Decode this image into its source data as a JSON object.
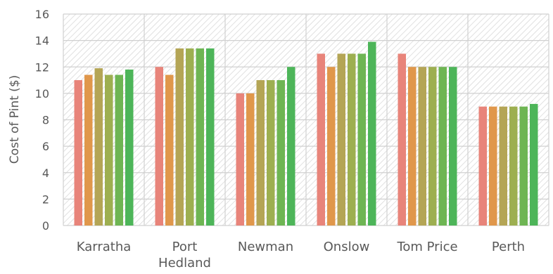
{
  "chart_data": {
    "type": "bar",
    "ylabel": "Cost of Pint ($)",
    "ylim": [
      0,
      16
    ],
    "yticks": [
      "0",
      "2",
      "4",
      "6",
      "8",
      "10",
      "12",
      "14",
      "16"
    ],
    "categories": [
      {
        "lines": [
          "Karratha"
        ]
      },
      {
        "lines": [
          "Port",
          "Hedland"
        ]
      },
      {
        "lines": [
          "Newman"
        ]
      },
      {
        "lines": [
          "Onslow"
        ]
      },
      {
        "lines": [
          "Tom Price"
        ]
      },
      {
        "lines": [
          "Perth"
        ]
      }
    ],
    "grid": true,
    "legend": "none",
    "colors": [
      "#E8847A",
      "#E0974B",
      "#B4A555",
      "#9DAF50",
      "#6EB553",
      "#4DB559"
    ],
    "series": [
      {
        "values": [
          11.0,
          12.0,
          10.0,
          13.0,
          13.0,
          9.0
        ]
      },
      {
        "values": [
          11.4,
          11.4,
          10.0,
          12.0,
          12.0,
          9.0
        ]
      },
      {
        "values": [
          11.9,
          13.4,
          11.0,
          13.0,
          12.0,
          9.0
        ]
      },
      {
        "values": [
          11.4,
          13.4,
          11.0,
          13.0,
          12.0,
          9.0
        ]
      },
      {
        "values": [
          11.4,
          13.4,
          11.0,
          13.0,
          12.0,
          9.0
        ]
      },
      {
        "values": [
          11.8,
          13.4,
          12.0,
          13.9,
          12.0,
          9.2
        ]
      }
    ]
  }
}
